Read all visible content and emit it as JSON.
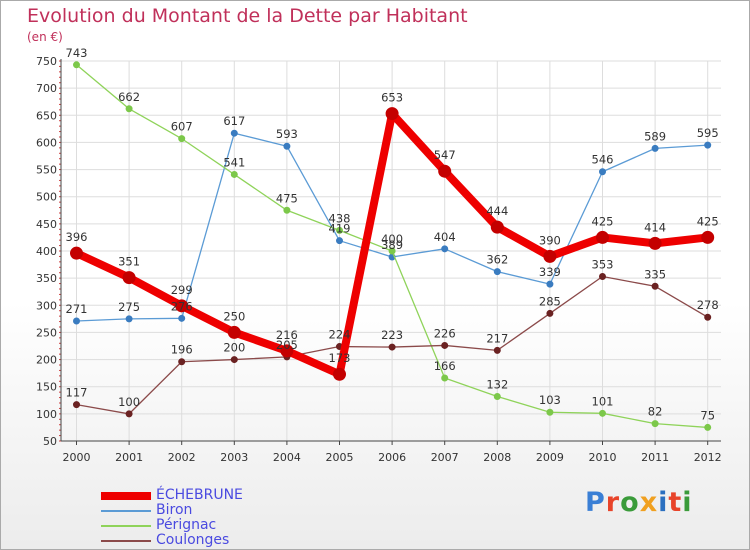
{
  "title": "Evolution du Montant de la Dette par Habitant",
  "unit": "(en €)",
  "brand": {
    "text": "Proxiti",
    "letter_colors": [
      "#3a7fd5",
      "#e8442a",
      "#3a9b3a",
      "#f0a020",
      "#2a6fc0",
      "#e8442a",
      "#3a9b3a"
    ]
  },
  "chart_data": {
    "type": "line",
    "x": [
      "2000",
      "2001",
      "2002",
      "2003",
      "2004",
      "2005",
      "2006",
      "2007",
      "2008",
      "2009",
      "2010",
      "2011",
      "2012"
    ],
    "ylim": [
      50,
      750
    ],
    "yticks": [
      50,
      100,
      150,
      200,
      250,
      300,
      350,
      400,
      450,
      500,
      550,
      600,
      650,
      700,
      750
    ],
    "grid": true,
    "legend": "bottom-left",
    "series": [
      {
        "name": "Biron",
        "color": "#5b9bd5",
        "marker": "#3a7cc0",
        "values": [
          271,
          275,
          276,
          617,
          593,
          419,
          389,
          404,
          362,
          339,
          546,
          589,
          595
        ],
        "labels": [
          "271",
          "275",
          "276",
          "617",
          "593",
          "419",
          "389",
          "404",
          "362",
          "339",
          "546",
          "589",
          "595"
        ]
      },
      {
        "name": "Pérignac",
        "color": "#8fd35a",
        "marker": "#7cc84a",
        "values": [
          743,
          662,
          607,
          541,
          475,
          438,
          400,
          166,
          132,
          103,
          101,
          82,
          75
        ],
        "labels": [
          "743",
          "662",
          "607",
          "541",
          "475",
          "438",
          "400",
          "166",
          "132",
          "103",
          "101",
          "82",
          "75"
        ]
      },
      {
        "name": "Coulonges",
        "color": "#8b4a4a",
        "marker": "#6b2222",
        "values": [
          117,
          100,
          196,
          200,
          205,
          224,
          223,
          226,
          217,
          285,
          353,
          335,
          278
        ],
        "labels": [
          "117",
          "100",
          "196",
          "200",
          "205",
          "224",
          "223",
          "226",
          "217",
          "285",
          "353",
          "335",
          "278"
        ]
      },
      {
        "name": "ÉCHEBRUNE",
        "color": "#ee0000",
        "marker": "#c40000",
        "values": [
          396,
          351,
          299,
          250,
          216,
          173,
          653,
          547,
          444,
          390,
          425,
          414,
          425
        ],
        "labels": [
          "396",
          "351",
          "299",
          "250",
          "216",
          "173",
          "653",
          "547",
          "444",
          "390",
          "425",
          "414",
          "425"
        ]
      }
    ],
    "legend_order": [
      "ÉCHEBRUNE",
      "Biron",
      "Pérignac",
      "Coulonges"
    ]
  }
}
